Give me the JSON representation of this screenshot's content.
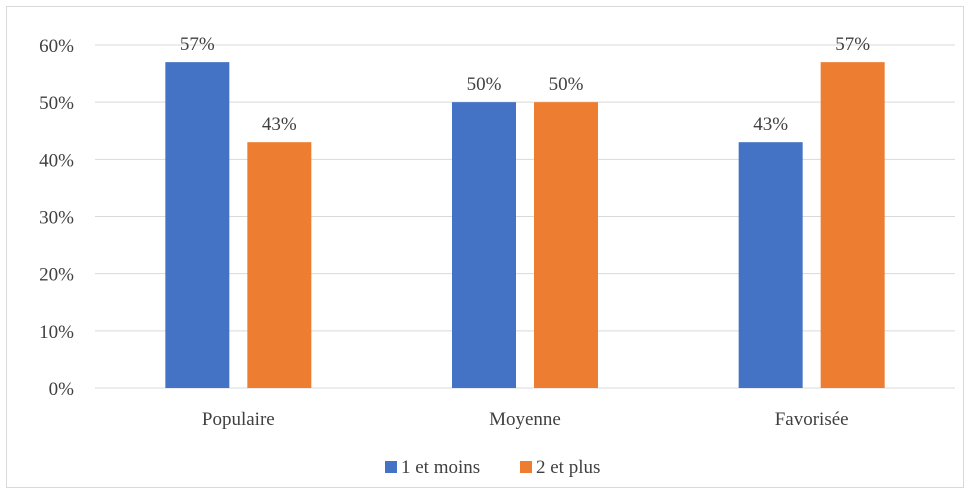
{
  "chart_data": {
    "type": "bar",
    "categories": [
      "Populaire",
      "Moyenne",
      "Favorisée"
    ],
    "series": [
      {
        "name": "1 et moins",
        "color": "#4472C4",
        "values": [
          57,
          50,
          43
        ],
        "labels": [
          "57%",
          "50%",
          "43%"
        ]
      },
      {
        "name": "2 et plus",
        "color": "#ED7D31",
        "values": [
          43,
          50,
          57
        ],
        "labels": [
          "43%",
          "50%",
          "57%"
        ]
      }
    ],
    "y_ticks": [
      "0%",
      "10%",
      "20%",
      "30%",
      "40%",
      "50%",
      "60%"
    ],
    "ylim": [
      0,
      60
    ],
    "grid": true,
    "legend_position": "bottom"
  }
}
